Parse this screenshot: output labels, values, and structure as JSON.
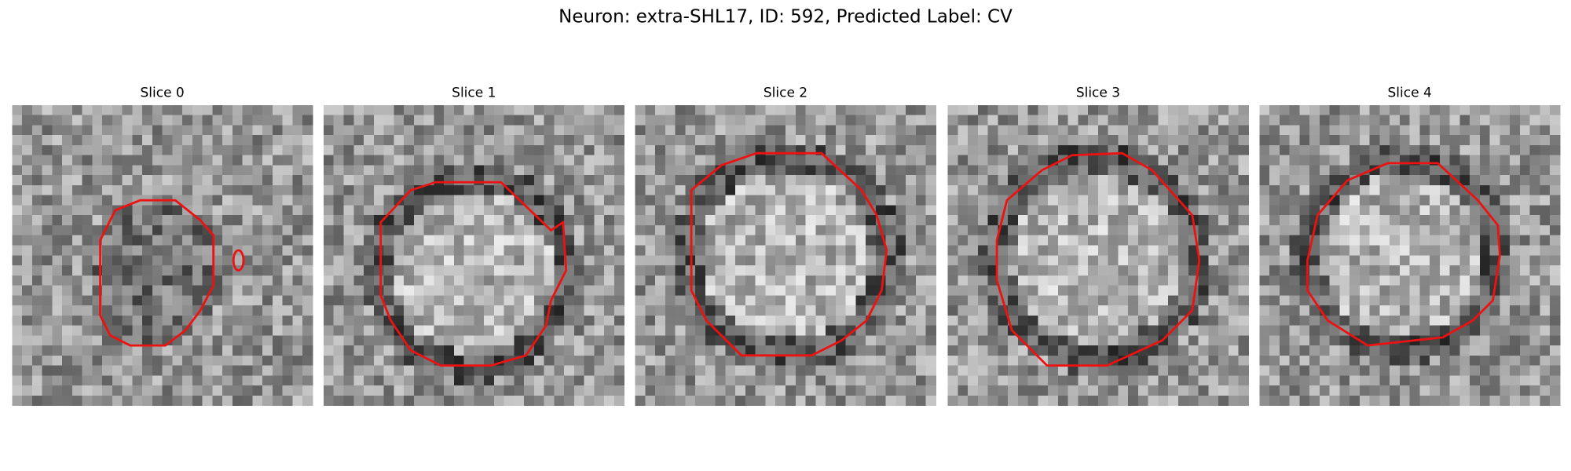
{
  "header": {
    "title": "Neuron: extra-SHL17, ID: 592, Predicted Label: CV"
  },
  "slices": [
    {
      "label": "Slice 0"
    },
    {
      "label": "Slice 1"
    },
    {
      "label": "Slice 2"
    },
    {
      "label": "Slice 3"
    },
    {
      "label": "Slice 4"
    }
  ]
}
